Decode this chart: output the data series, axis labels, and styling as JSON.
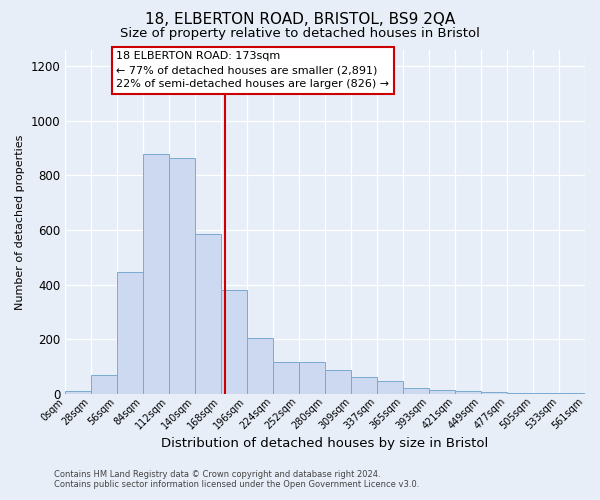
{
  "title": "18, ELBERTON ROAD, BRISTOL, BS9 2QA",
  "subtitle": "Size of property relative to detached houses in Bristol",
  "xlabel": "Distribution of detached houses by size in Bristol",
  "ylabel": "Number of detached properties",
  "bar_edges": [
    0,
    28,
    56,
    84,
    112,
    140,
    168,
    196,
    224,
    252,
    280,
    309,
    337,
    365,
    393,
    421,
    449,
    477,
    505,
    533,
    561
  ],
  "bar_heights": [
    10,
    70,
    445,
    880,
    865,
    585,
    380,
    205,
    115,
    115,
    85,
    60,
    45,
    20,
    15,
    8,
    5,
    3,
    2,
    1
  ],
  "bar_color": "#ccd9f0",
  "bar_edge_color": "#7aaad0",
  "property_line_x": 173,
  "annotation_title": "18 ELBERTON ROAD: 173sqm",
  "annotation_line1": "← 77% of detached houses are smaller (2,891)",
  "annotation_line2": "22% of semi-detached houses are larger (826) →",
  "annotation_box_facecolor": "#ffffff",
  "annotation_box_edgecolor": "#cc0000",
  "annotation_line_color": "#cc0000",
  "ylim": [
    0,
    1260
  ],
  "xlim": [
    0,
    561
  ],
  "fig_background": "#e8eef8",
  "plot_background": "#e8eef8",
  "tick_labels": [
    "0sqm",
    "28sqm",
    "56sqm",
    "84sqm",
    "112sqm",
    "140sqm",
    "168sqm",
    "196sqm",
    "224sqm",
    "252sqm",
    "280sqm",
    "309sqm",
    "337sqm",
    "365sqm",
    "393sqm",
    "421sqm",
    "449sqm",
    "477sqm",
    "505sqm",
    "533sqm",
    "561sqm"
  ],
  "footer_line1": "Contains HM Land Registry data © Crown copyright and database right 2024.",
  "footer_line2": "Contains public sector information licensed under the Open Government Licence v3.0.",
  "title_fontsize": 11,
  "subtitle_fontsize": 9.5,
  "xlabel_fontsize": 9.5,
  "ylabel_fontsize": 8,
  "tick_fontsize": 7,
  "footer_fontsize": 6,
  "annotation_fontsize": 8,
  "ytick_labels": [
    0,
    200,
    400,
    600,
    800,
    1000,
    1200
  ]
}
